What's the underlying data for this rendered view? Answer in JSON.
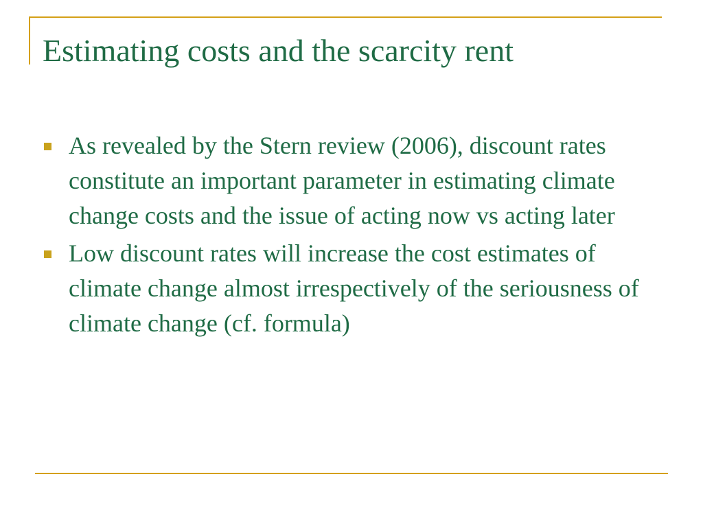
{
  "slide": {
    "title": "Estimating costs and the scarcity rent",
    "bullets": [
      {
        "text": "As revealed by the Stern review (2006), discount rates constitute an important parameter in estimating climate change costs and the issue of acting now vs acting later"
      },
      {
        "text": "Low discount rates will increase the cost estimates of climate change almost irrespectively of the seriousness of climate change (cf. formula)"
      }
    ]
  },
  "colors": {
    "text": "#1f6b45",
    "accent_line": "#d4a017",
    "bullet": "#c9a21c",
    "background": "#ffffff"
  },
  "icons": {
    "bullet": "square-bullet-icon"
  }
}
